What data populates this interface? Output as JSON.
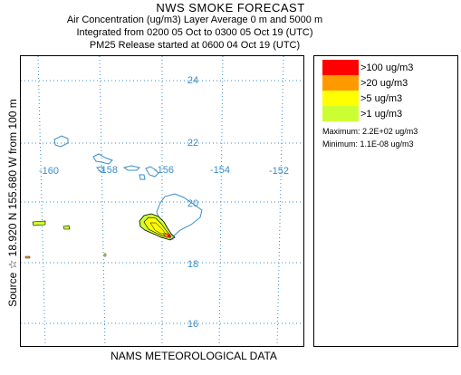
{
  "header": {
    "title": "NWS SMOKE FORECAST",
    "line1": "Air Concentration (ug/m3) Layer Average    0 m and  5000 m",
    "line2": "Integrated from 0200 05 Oct to 0300 05 Oct 19 (UTC)",
    "line3": "PM25 Release started at 0600 04 Oct 19 (UTC)"
  },
  "source_label": "Source ☆  18.920  N 155.680  W      from  100 m",
  "footer": "NAMS METEOROLOGICAL DATA",
  "map": {
    "longitude_labels": [
      "-160",
      "-158",
      "-156",
      "-154",
      "-152"
    ],
    "latitude_labels": [
      "24",
      "22",
      "20",
      "18",
      "16"
    ],
    "gridline_color": "#3a8ec9",
    "coast_color": "#3a8ec9"
  },
  "legend": {
    "items": [
      {
        "label": ">100 ug/m3",
        "color": "#ff0000"
      },
      {
        "label": ">20 ug/m3",
        "color": "#ff9900"
      },
      {
        "label": ">5 ug/m3",
        "color": "#ffff00"
      },
      {
        "label": ">1 ug/m3",
        "color": "#ccff33"
      }
    ],
    "maximum": "Maximum: 2.2E+02 ug/m3",
    "minimum": "Minimum: 1.1E-08 ug/m3"
  }
}
